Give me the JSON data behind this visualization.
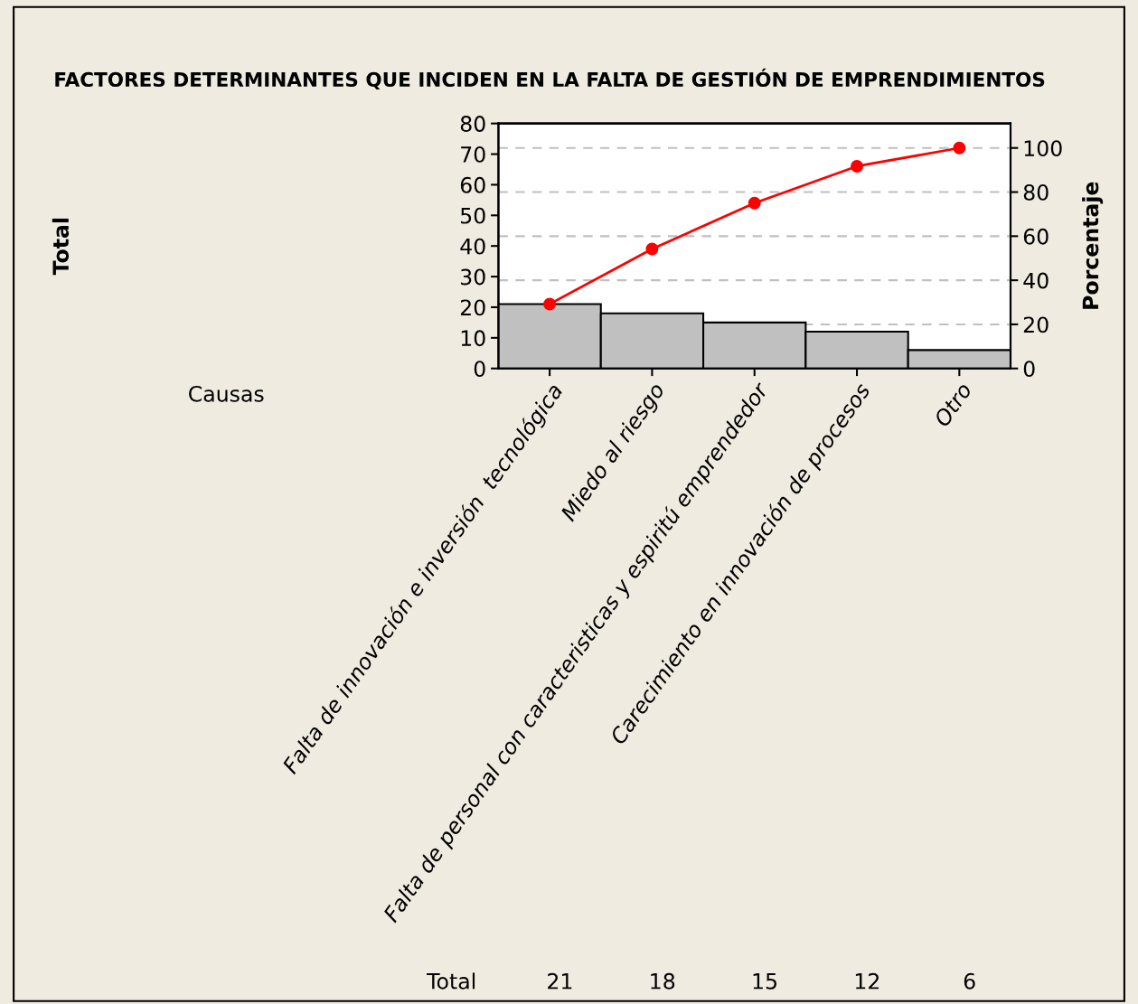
{
  "chart_data": {
    "type": "bar",
    "title": "FACTORES DETERMINANTES QUE INCIDEN EN LA FALTA DE GESTIÓN DE EMPRENDIMIENTOS",
    "xlabel": "Causas",
    "y2label": "Porcentaje",
    "categories": [
      "Falta de innovación e inversión  tecnológica",
      "Miedo al riesgo",
      "Falta de personal con caracteristicas y espiritú emprendedor",
      "Carecimiento en innovación de procesos",
      "Otro"
    ],
    "series": [
      {
        "color": "#c0c0c0",
        "values": [
          21,
          18,
          15,
          12,
          6
        ],
        "value_labels": [
          "21",
          "18",
          "15",
          "12",
          "6"
        ]
      },
      {
        "type": "line",
        "axis": "y2",
        "color": "#ff0000",
        "values": [
          29.2,
          54.2,
          75.0,
          91.7,
          100
        ],
        "marker": "circle",
        "line_style": "solid"
      }
    ],
    "annotations": [
      "Total",
      "Total"
    ],
    "ylim": [
      0,
      80
    ],
    "yticks": [
      0,
      10,
      20,
      30,
      40,
      50,
      60,
      70,
      80
    ],
    "y2lim": [
      0,
      111.1
    ],
    "y2ticks": [
      0,
      20,
      40,
      60,
      80,
      100
    ],
    "grid": "y2",
    "legend": false
  }
}
